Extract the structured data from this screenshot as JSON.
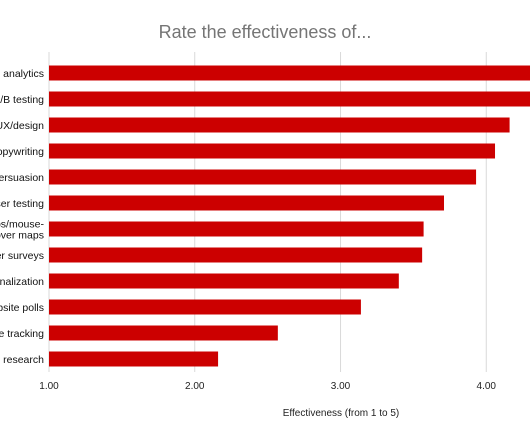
{
  "chart_data": {
    "type": "bar",
    "orientation": "horizontal",
    "title": "Rate the effectiveness of...",
    "xlabel": "Effectiveness (from 1 to 5)",
    "ylabel": "",
    "xlim": [
      1,
      4.3
    ],
    "xticks": [
      "1.00",
      "2.00",
      "3.00",
      "4.00"
    ],
    "grid": true,
    "bar_color": "#cc0000",
    "categories": [
      [
        "al analytics"
      ],
      [
        "A/B testing"
      ],
      [
        "UX/design"
      ],
      [
        "opywriting"
      ],
      [
        "persuasion"
      ],
      [
        "ser testing"
      ],
      [
        "ps/mouse-",
        "over maps"
      ],
      [
        "er surveys"
      ],
      [
        "onalization"
      ],
      [
        "ebsite polls"
      ],
      [
        "ve tracking"
      ],
      [
        "c research"
      ]
    ],
    "values": [
      4.35,
      4.35,
      4.16,
      4.06,
      3.93,
      3.71,
      3.57,
      3.56,
      3.4,
      3.14,
      2.57,
      2.16
    ]
  }
}
